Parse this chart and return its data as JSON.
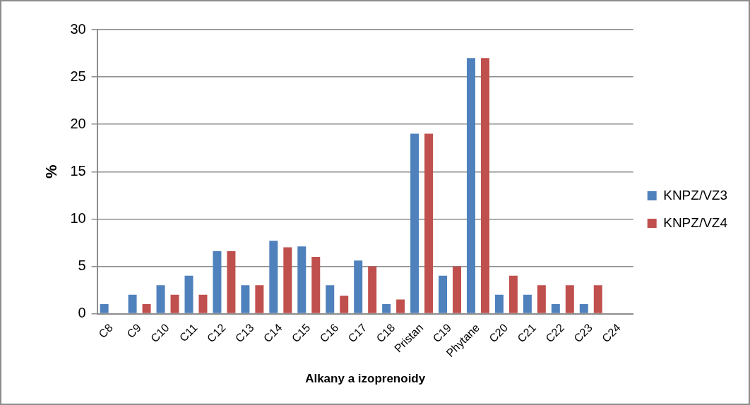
{
  "chart_data": {
    "type": "bar",
    "xlabel": "Alkany a izoprenoidy",
    "ylabel": "%",
    "categories": [
      "C8",
      "C9",
      "C10",
      "C11",
      "C12",
      "C13",
      "C14",
      "C15",
      "C16",
      "C17",
      "C18",
      "Pristan",
      "C19",
      "Phytane",
      "C20",
      "C21",
      "C22",
      "C23",
      "C24"
    ],
    "series": [
      {
        "name": "KNPZ/VZ3",
        "color": "#4f81bd",
        "values": [
          1,
          2,
          3,
          4,
          6.6,
          3,
          7.7,
          7.1,
          3,
          5.6,
          1,
          19,
          4,
          27,
          2,
          2,
          1,
          1,
          0
        ]
      },
      {
        "name": "KNPZ/VZ4",
        "color": "#c0504d",
        "values": [
          0,
          1,
          2,
          2,
          6.6,
          3,
          7,
          6,
          1.9,
          5,
          1.5,
          19,
          5,
          27,
          4,
          3,
          3,
          3,
          0
        ]
      }
    ],
    "ylim": [
      0,
      30
    ],
    "yticks": [
      0,
      5,
      10,
      15,
      20,
      25,
      30
    ],
    "grid": "y",
    "legend": "right"
  }
}
